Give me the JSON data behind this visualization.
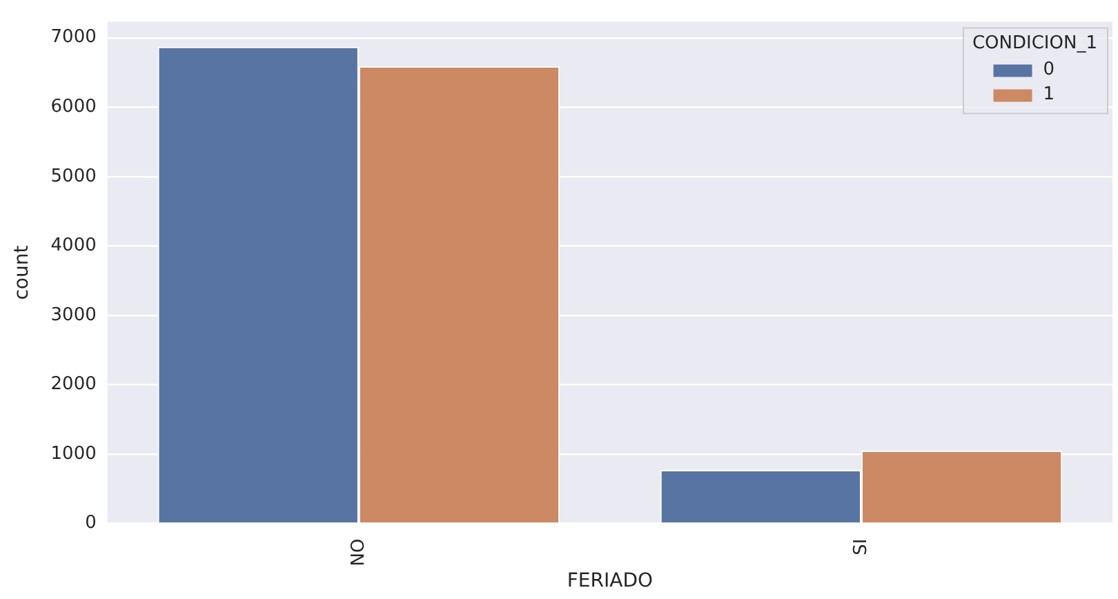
{
  "chart_data": {
    "type": "bar",
    "xlabel": "FERIADO",
    "ylabel": "count",
    "legend_title": "CONDICION_1",
    "categories": [
      "NO",
      "SI"
    ],
    "series": [
      {
        "name": "0",
        "color": "#5874a3",
        "values": [
          6870,
          770
        ]
      },
      {
        "name": "1",
        "color": "#cc8963",
        "values": [
          6590,
          1050
        ]
      }
    ],
    "ylim": [
      0,
      7230
    ],
    "yticks": [
      0,
      1000,
      2000,
      3000,
      4000,
      5000,
      6000,
      7000
    ],
    "grid": "y",
    "legend": "top right"
  }
}
